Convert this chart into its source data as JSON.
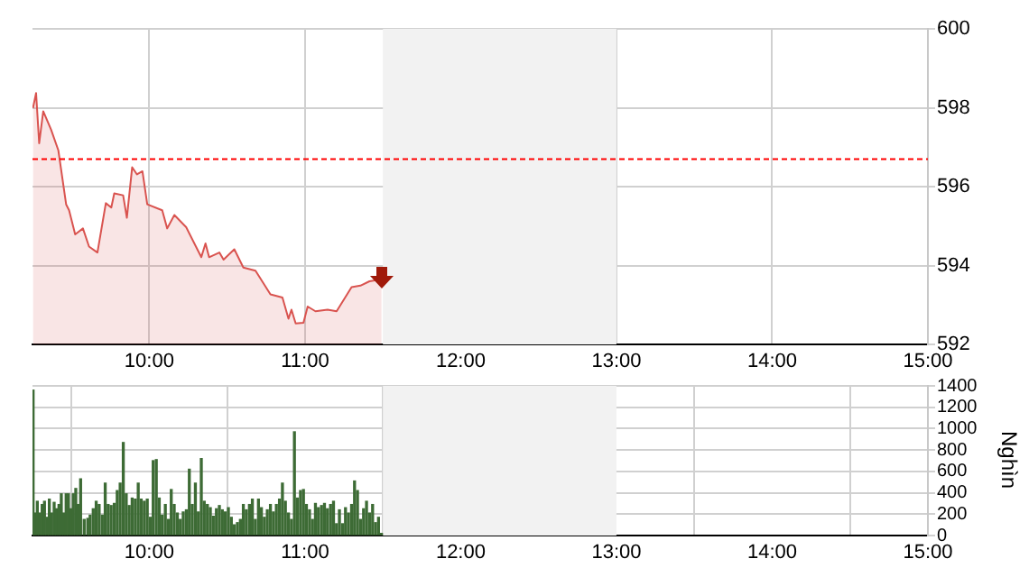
{
  "chart_data": [
    {
      "type": "area",
      "x": [
        9.253,
        9.273,
        9.293,
        9.319,
        9.369,
        9.416,
        9.466,
        9.485,
        9.524,
        9.574,
        9.613,
        9.667,
        9.721,
        9.756,
        9.775,
        9.832,
        9.856,
        9.89,
        9.921,
        9.956,
        9.987,
        10.083,
        10.115,
        10.161,
        10.237,
        10.334,
        10.361,
        10.384,
        10.45,
        10.477,
        10.546,
        10.604,
        10.682,
        10.778,
        10.855,
        10.894,
        10.913,
        10.94,
        10.99,
        11.017,
        11.067,
        11.145,
        11.203,
        11.299,
        11.356,
        11.414,
        11.492
      ],
      "series": [
        {
          "color": "#d9534f",
          "values": [
            597.99,
            598.37,
            597.1,
            597.91,
            597.45,
            596.92,
            595.55,
            595.4,
            594.79,
            594.94,
            594.48,
            594.33,
            595.58,
            595.47,
            595.83,
            595.78,
            595.21,
            596.49,
            596.31,
            596.39,
            595.55,
            595.4,
            594.94,
            595.28,
            594.97,
            594.21,
            594.56,
            594.21,
            594.33,
            594.15,
            594.41,
            593.95,
            593.87,
            593.27,
            593.19,
            592.65,
            592.88,
            592.53,
            592.55,
            592.96,
            592.84,
            592.88,
            592.84,
            593.45,
            593.49,
            593.6,
            593.65
          ]
        }
      ],
      "xlim": [
        9.25,
        15
      ],
      "xticks": [
        {
          "value": 10,
          "label": "10:00"
        },
        {
          "value": 11,
          "label": "11:00"
        },
        {
          "value": 12,
          "label": "12:00"
        },
        {
          "value": 13,
          "label": "13:00"
        },
        {
          "value": 14,
          "label": "14:00"
        },
        {
          "value": 15,
          "label": "15:00"
        }
      ],
      "ylim": [
        592,
        600
      ],
      "yticks": [
        592,
        594,
        596,
        598,
        600
      ],
      "ref_lines": [
        {
          "axis": "y",
          "value": 596.7,
          "color": "#ff0000",
          "line_style": "dashed"
        }
      ],
      "bands": [
        {
          "axis": "x",
          "from": 11.5,
          "to": 13,
          "color": "#f2f2f2"
        }
      ],
      "grid": true,
      "legend": false
    },
    {
      "type": "bar",
      "x": [
        9.254,
        9.265,
        9.281,
        9.296,
        9.312,
        9.327,
        9.343,
        9.358,
        9.373,
        9.389,
        9.404,
        9.42,
        9.435,
        9.451,
        9.466,
        9.481,
        9.497,
        9.512,
        9.528,
        9.543,
        9.559,
        9.582,
        9.605,
        9.62,
        9.64,
        9.659,
        9.678,
        9.698,
        9.717,
        9.736,
        9.755,
        9.775,
        9.794,
        9.813,
        9.833,
        9.852,
        9.871,
        9.89,
        9.91,
        9.929,
        9.948,
        9.968,
        9.987,
        10.006,
        10.025,
        10.045,
        10.064,
        10.083,
        10.103,
        10.122,
        10.141,
        10.16,
        10.18,
        10.199,
        10.218,
        10.238,
        10.257,
        10.276,
        10.296,
        10.315,
        10.334,
        10.353,
        10.373,
        10.392,
        10.411,
        10.431,
        10.45,
        10.469,
        10.488,
        10.508,
        10.527,
        10.546,
        10.566,
        10.585,
        10.604,
        10.623,
        10.643,
        10.662,
        10.681,
        10.701,
        10.72,
        10.739,
        10.758,
        10.778,
        10.797,
        10.816,
        10.836,
        10.855,
        10.874,
        10.894,
        10.913,
        10.932,
        10.951,
        10.971,
        10.99,
        11.009,
        11.029,
        11.048,
        11.067,
        11.086,
        11.106,
        11.125,
        11.144,
        11.164,
        11.183,
        11.202,
        11.221,
        11.241,
        11.26,
        11.279,
        11.299,
        11.318,
        11.337,
        11.356,
        11.376,
        11.395,
        11.414,
        11.434,
        11.453,
        11.472,
        11.491
      ],
      "values": [
        1360,
        210,
        320,
        210,
        290,
        320,
        170,
        340,
        210,
        310,
        250,
        290,
        390,
        210,
        390,
        390,
        250,
        390,
        440,
        290,
        530,
        150,
        160,
        190,
        250,
        320,
        290,
        190,
        490,
        290,
        280,
        300,
        420,
        490,
        870,
        390,
        280,
        350,
        340,
        490,
        340,
        320,
        340,
        170,
        700,
        710,
        350,
        190,
        290,
        150,
        430,
        290,
        210,
        150,
        220,
        240,
        620,
        290,
        490,
        220,
        720,
        320,
        290,
        260,
        180,
        250,
        280,
        240,
        220,
        260,
        170,
        100,
        120,
        150,
        290,
        240,
        290,
        340,
        150,
        340,
        260,
        170,
        240,
        290,
        220,
        290,
        340,
        490,
        320,
        210,
        150,
        970,
        350,
        420,
        430,
        290,
        240,
        150,
        300,
        260,
        280,
        300,
        250,
        290,
        320,
        110,
        240,
        110,
        260,
        210,
        290,
        510,
        420,
        150,
        250,
        320,
        210,
        290,
        120,
        170,
        20
      ],
      "color": "#3d6b35",
      "xlim": [
        9.25,
        15
      ],
      "xticks": [
        {
          "value": 10,
          "label": "10:00"
        },
        {
          "value": 11,
          "label": "11:00"
        },
        {
          "value": 12,
          "label": "12:00"
        },
        {
          "value": 13,
          "label": "13:00"
        },
        {
          "value": 14,
          "label": "14:00"
        },
        {
          "value": 15,
          "label": "15:00"
        }
      ],
      "ylim": [
        0,
        1400
      ],
      "yticks": [
        0,
        200,
        400,
        600,
        800,
        1000,
        1200,
        1400
      ],
      "ylabel": "Nghìn",
      "bands": [
        {
          "axis": "x",
          "from": 11.5,
          "to": 13,
          "color": "#f2f2f2"
        }
      ],
      "grid": true,
      "legend": false
    }
  ]
}
